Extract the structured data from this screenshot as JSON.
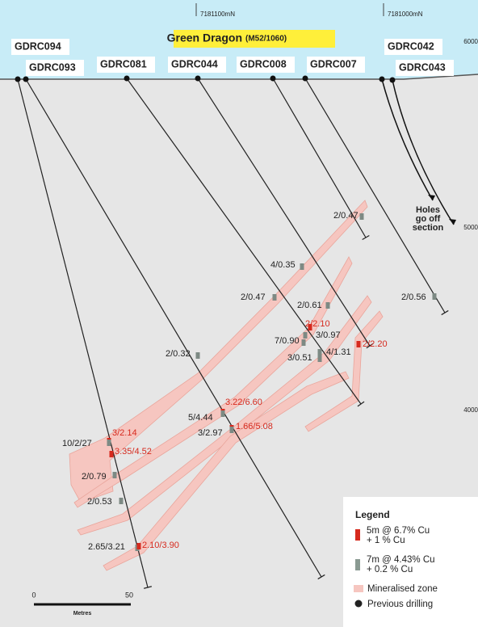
{
  "header": {
    "northing_left": "7181100mN",
    "northing_right": "7181000mN",
    "title": "Green Dragon",
    "tenement": "(M52/1060)"
  },
  "elevations": [
    "6000",
    "5000",
    "4000"
  ],
  "holes": [
    "GDRC094",
    "GDRC093",
    "GDRC081",
    "GDRC044",
    "GDRC008",
    "GDRC007",
    "GDRC042",
    "GDRC043"
  ],
  "note": [
    "Holes",
    "go off",
    "section"
  ],
  "intercepts": [
    {
      "label": "2/0.47",
      "color": "#222222"
    },
    {
      "label": "4/0.35",
      "color": "#222222"
    },
    {
      "label": "2/0.47",
      "color": "#222222"
    },
    {
      "label": "2/0.61",
      "color": "#222222"
    },
    {
      "label": "2/2.10",
      "color": "#d62a1e"
    },
    {
      "label": "3/0.97",
      "color": "#222222"
    },
    {
      "label": "7/0.90",
      "color": "#222222"
    },
    {
      "label": "4/1.31",
      "color": "#222222"
    },
    {
      "label": "2/2.20",
      "color": "#d62a1e"
    },
    {
      "label": "3/0.51",
      "color": "#222222"
    },
    {
      "label": "2/0.56",
      "color": "#222222"
    },
    {
      "label": "2/0.32",
      "color": "#222222"
    },
    {
      "label": "3.22/6.60",
      "color": "#d62a1e"
    },
    {
      "label": "5/4.44",
      "color": "#222222"
    },
    {
      "label": "1.66/5.08",
      "color": "#d62a1e"
    },
    {
      "label": "3/2.97",
      "color": "#222222"
    },
    {
      "label": "3/2.14",
      "color": "#d62a1e"
    },
    {
      "label": "10/2/27",
      "color": "#222222"
    },
    {
      "label": "3.35/4.52",
      "color": "#d62a1e"
    },
    {
      "label": "2/0.79",
      "color": "#222222"
    },
    {
      "label": "2/0.53",
      "color": "#222222"
    },
    {
      "label": "2.65/3.21",
      "color": "#222222"
    },
    {
      "label": "2.10/3.90",
      "color": "#d62a1e"
    }
  ],
  "scale": {
    "start": "0",
    "end": "50",
    "unit": "Metres"
  },
  "legend": {
    "title": "Legend",
    "items": [
      [
        "5m @ 6.7% Cu",
        "+ 1 % Cu"
      ],
      [
        "7m @ 4.43% Cu",
        "+ 0.2 % Cu"
      ],
      [
        "Mineralised zone"
      ],
      [
        "Previous drilling"
      ]
    ]
  }
}
